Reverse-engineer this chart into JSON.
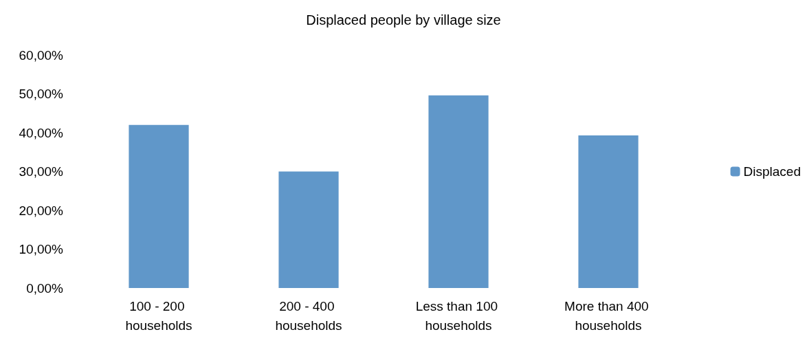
{
  "chart_data": {
    "type": "bar",
    "title": "Displaced people by village size",
    "categories": [
      "100 - 200 households",
      "200 - 400 households",
      "Less than 100 households",
      "More than 400 households"
    ],
    "series": [
      {
        "name": "Displaced",
        "color": "#6097c9",
        "values": [
          42,
          30,
          49.6,
          39.3
        ]
      }
    ],
    "ylim": [
      0,
      60
    ],
    "yticks": [
      {
        "value": 0,
        "label": "0,00%"
      },
      {
        "value": 10,
        "label": "10,00%"
      },
      {
        "value": 20,
        "label": "20,00%"
      },
      {
        "value": 30,
        "label": "30,00%"
      },
      {
        "value": 40,
        "label": "40,00%"
      },
      {
        "value": 50,
        "label": "50,00%"
      },
      {
        "value": 60,
        "label": "60,00%"
      }
    ],
    "grid": false,
    "legend": "right"
  }
}
